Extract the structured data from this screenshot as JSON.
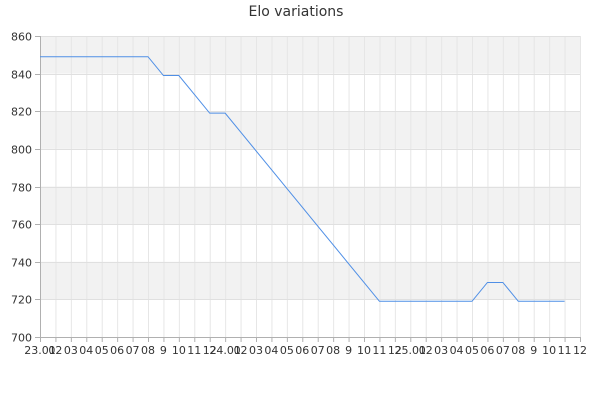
{
  "chart_data": {
    "type": "line",
    "title": "Elo variations",
    "xlabel": "",
    "ylabel": "",
    "ylim": [
      700,
      860
    ],
    "y_ticks": [
      700,
      720,
      740,
      760,
      780,
      800,
      820,
      840,
      860
    ],
    "x_tick_labels": [
      "23.01",
      "02",
      "03",
      "04",
      "05",
      "06",
      "07",
      "08",
      "9",
      "10",
      "11",
      "12",
      "24.01",
      "02",
      "03",
      "04",
      "05",
      "06",
      "07",
      "08",
      "9",
      "10",
      "11",
      "12",
      "25.01",
      "02",
      "03",
      "04",
      "05",
      "06",
      "07",
      "08",
      "9",
      "10",
      "11",
      "12"
    ],
    "grid": true,
    "legend": "none",
    "colors": {
      "line": "#4f8fe6",
      "band": "#f2f2f2"
    },
    "series": [
      {
        "values": [
          849,
          849,
          849,
          849,
          849,
          849,
          849,
          849,
          839,
          839,
          829,
          819,
          819,
          809,
          799,
          789,
          779,
          769,
          759,
          749,
          739,
          729,
          719,
          719,
          719,
          719,
          719,
          719,
          719,
          729,
          729,
          719,
          719,
          719,
          719
        ]
      }
    ]
  }
}
